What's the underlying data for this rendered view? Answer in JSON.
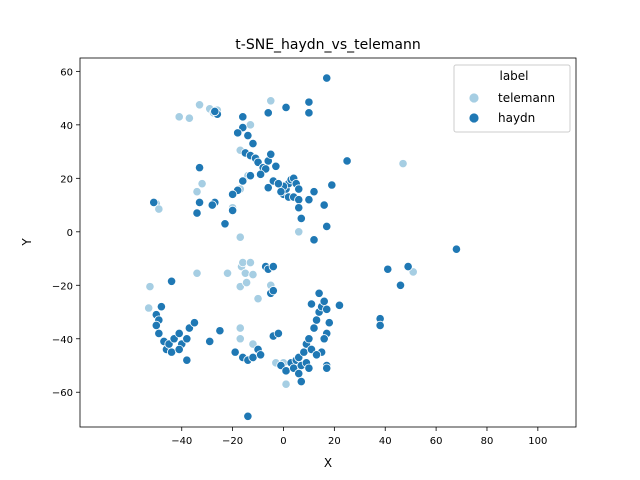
{
  "chart_data": {
    "type": "scatter",
    "title": "t-SNE_haydn_vs_telemann",
    "xlabel": "X",
    "ylabel": "Y",
    "xlim": [
      -80,
      115
    ],
    "ylim": [
      -73,
      65
    ],
    "xticks": [
      -40,
      -20,
      0,
      20,
      40,
      60,
      80,
      100
    ],
    "yticks": [
      -60,
      -40,
      -20,
      0,
      20,
      40,
      60
    ],
    "grid": false,
    "legend": {
      "title": "label",
      "placement": "top-right"
    },
    "series": [
      {
        "name": "telemann",
        "color": "#a6cee3",
        "points": [
          [
            -41,
            43
          ],
          [
            -37,
            42.5
          ],
          [
            -33,
            47.5
          ],
          [
            -29,
            46
          ],
          [
            -27.5,
            44.5
          ],
          [
            -26,
            45.5
          ],
          [
            -13,
            40
          ],
          [
            -5,
            49
          ],
          [
            47,
            25.5
          ],
          [
            -17,
            30.5
          ],
          [
            -34,
            15
          ],
          [
            -32,
            18
          ],
          [
            -50,
            10.5
          ],
          [
            -51,
            11
          ],
          [
            -49,
            8.5
          ],
          [
            -17,
            16
          ],
          [
            -14,
            21
          ],
          [
            -20,
            9
          ],
          [
            -17,
            -2
          ],
          [
            -34,
            -15.5
          ],
          [
            -22,
            -15.5
          ],
          [
            -17,
            -20.5
          ],
          [
            -16.5,
            -13
          ],
          [
            -16,
            -11.5
          ],
          [
            -15,
            -15.5
          ],
          [
            -13,
            -11.5
          ],
          [
            -12,
            -16
          ],
          [
            -14.5,
            -19
          ],
          [
            -10,
            -25
          ],
          [
            -5,
            -20
          ],
          [
            -12,
            -42
          ],
          [
            -17,
            -36
          ],
          [
            -17,
            -40
          ],
          [
            1,
            -57
          ],
          [
            -3,
            -49
          ],
          [
            0,
            -49
          ],
          [
            -52.5,
            -20.5
          ],
          [
            -53,
            -28.5
          ],
          [
            6,
            0
          ],
          [
            51,
            -15
          ]
        ]
      },
      {
        "name": "haydn",
        "color": "#1f78b4",
        "points": [
          [
            -26,
            44
          ],
          [
            -27,
            45
          ],
          [
            -16,
            43
          ],
          [
            -16,
            39
          ],
          [
            -18,
            37
          ],
          [
            -14,
            36
          ],
          [
            -6,
            44.5
          ],
          [
            1,
            46.5
          ],
          [
            10,
            44.5
          ],
          [
            10,
            48.5
          ],
          [
            17,
            57.5
          ],
          [
            -12,
            33
          ],
          [
            -15,
            29.5
          ],
          [
            -13,
            28.5
          ],
          [
            -11,
            27.5
          ],
          [
            -10,
            26
          ],
          [
            -8,
            24
          ],
          [
            -6,
            26.5
          ],
          [
            -7,
            23.5
          ],
          [
            -5,
            29
          ],
          [
            -3,
            24.5
          ],
          [
            -13,
            21
          ],
          [
            -16,
            19
          ],
          [
            -18,
            15.5
          ],
          [
            -9,
            21.5
          ],
          [
            -4,
            19
          ],
          [
            -6,
            16.5
          ],
          [
            0,
            14
          ],
          [
            1,
            16
          ],
          [
            2,
            18
          ],
          [
            3,
            19.5
          ],
          [
            4,
            20
          ],
          [
            5,
            18
          ],
          [
            6,
            16
          ],
          [
            2,
            13
          ],
          [
            4,
            13
          ],
          [
            6,
            12
          ],
          [
            0,
            17
          ],
          [
            -1,
            15
          ],
          [
            -2,
            18
          ],
          [
            7,
            5
          ],
          [
            6,
            9
          ],
          [
            10,
            12
          ],
          [
            12,
            15
          ],
          [
            16,
            10
          ],
          [
            19,
            17.5
          ],
          [
            25,
            26.5
          ],
          [
            17,
            2
          ],
          [
            12,
            -3
          ],
          [
            -33,
            24
          ],
          [
            -33,
            11
          ],
          [
            -34,
            7
          ],
          [
            -27,
            11
          ],
          [
            -28,
            10
          ],
          [
            -23,
            3
          ],
          [
            -20,
            8
          ],
          [
            -20,
            14
          ],
          [
            -51,
            11
          ],
          [
            -7,
            -13
          ],
          [
            -6,
            -14
          ],
          [
            -4,
            -13
          ],
          [
            -5,
            -23
          ],
          [
            -4,
            -22
          ],
          [
            -44,
            -18.5
          ],
          [
            -48,
            -28
          ],
          [
            -50,
            -31
          ],
          [
            -49,
            -33
          ],
          [
            -50,
            -35
          ],
          [
            -49,
            -38
          ],
          [
            -47,
            -41
          ],
          [
            -46,
            -44
          ],
          [
            -44,
            -45
          ],
          [
            -45,
            -42
          ],
          [
            -43,
            -40
          ],
          [
            -41,
            -38
          ],
          [
            -40,
            -42
          ],
          [
            -38,
            -40
          ],
          [
            -37,
            -36
          ],
          [
            -35,
            -34
          ],
          [
            -41,
            -44
          ],
          [
            -38,
            -48
          ],
          [
            -29,
            -41
          ],
          [
            -25,
            -37
          ],
          [
            -19,
            -45
          ],
          [
            -16,
            -47
          ],
          [
            -14,
            -48
          ],
          [
            -12,
            -47
          ],
          [
            -10,
            -44
          ],
          [
            -9,
            -46
          ],
          [
            -4,
            -39
          ],
          [
            -2,
            -38
          ],
          [
            -1,
            -50
          ],
          [
            1,
            -52
          ],
          [
            3,
            -49
          ],
          [
            4,
            -51
          ],
          [
            5,
            -48
          ],
          [
            6,
            -47
          ],
          [
            7,
            -50
          ],
          [
            6,
            -53
          ],
          [
            7,
            -56
          ],
          [
            8,
            -45
          ],
          [
            9,
            -42
          ],
          [
            10,
            -40
          ],
          [
            11,
            -44
          ],
          [
            9,
            -49
          ],
          [
            10,
            -51
          ],
          [
            12,
            -36
          ],
          [
            13,
            -33
          ],
          [
            14,
            -30
          ],
          [
            15,
            -28
          ],
          [
            16,
            -26
          ],
          [
            17,
            -29
          ],
          [
            18,
            -34
          ],
          [
            17,
            -38
          ],
          [
            16,
            -40
          ],
          [
            15,
            -45
          ],
          [
            14,
            -23
          ],
          [
            11,
            -27
          ],
          [
            13,
            -46
          ],
          [
            17,
            -50
          ],
          [
            17,
            -51
          ],
          [
            22,
            -27.5
          ],
          [
            38,
            -32.5
          ],
          [
            38,
            -35
          ],
          [
            41,
            -14
          ],
          [
            46,
            -20
          ],
          [
            49,
            -13
          ],
          [
            68,
            -6.5
          ],
          [
            -14,
            -69
          ]
        ]
      }
    ]
  }
}
